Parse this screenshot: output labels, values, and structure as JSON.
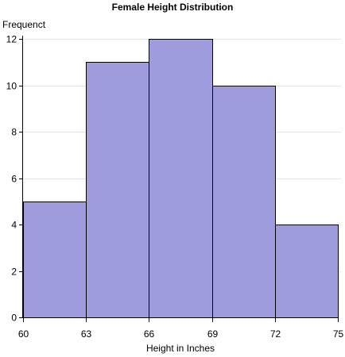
{
  "chart_data": {
    "type": "bar",
    "title": "Female Height Distribution",
    "xlabel": "Height in Inches",
    "ylabel": "Frequenct",
    "bins": [
      [
        60,
        63
      ],
      [
        63,
        66
      ],
      [
        66,
        69
      ],
      [
        69,
        72
      ],
      [
        72,
        75
      ]
    ],
    "values": [
      5,
      11,
      12,
      10,
      4
    ],
    "xticks": [
      60,
      63,
      66,
      69,
      72,
      75
    ],
    "yticks": [
      0,
      2,
      4,
      6,
      8,
      10,
      12
    ],
    "xlim": [
      60,
      75
    ],
    "ylim": [
      0,
      12
    ],
    "grid": true,
    "bar_color": "#9e9cdd"
  }
}
